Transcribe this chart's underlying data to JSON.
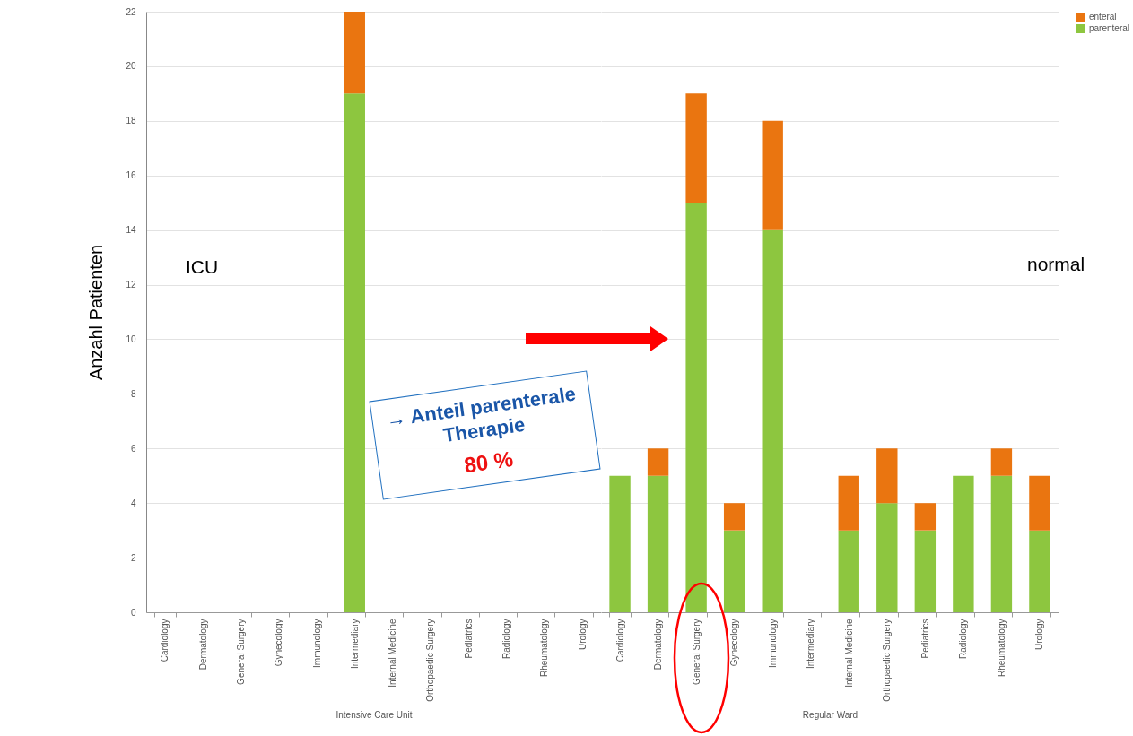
{
  "chart_data": [
    {
      "type": "bar",
      "stacked": true,
      "ylabel": "Anzahl Patienten",
      "xlabel": "Intensive Care Unit",
      "categories": [
        "Cardiology",
        "Dermatology",
        "General Surgery",
        "Gynecology",
        "Immunology",
        "Intermediary",
        "Internal Medicine",
        "Orthopaedic Surgery",
        "Pediatrics",
        "Radiology",
        "Rheumatology",
        "Urology"
      ],
      "series": [
        {
          "color": "#8dc63f",
          "values": [
            0,
            0,
            0,
            0,
            0,
            19,
            0,
            0,
            0,
            0,
            0,
            0
          ]
        },
        {
          "color": "#ea7510",
          "values": [
            0,
            0,
            0,
            0,
            0,
            3,
            0,
            0,
            0,
            0,
            0,
            0
          ]
        }
      ],
      "ylim": [
        0,
        22
      ],
      "yticks": [
        0,
        2,
        4,
        6,
        8,
        10,
        12,
        14,
        16,
        18,
        20,
        22
      ],
      "grid": "y",
      "annotations": [
        "ICU",
        "→ Anteil parenterale Therapie",
        "80 %"
      ]
    },
    {
      "type": "bar",
      "stacked": true,
      "xlabel": "Regular Ward",
      "categories": [
        "Cardiology",
        "Dermatology",
        "General Surgery",
        "Gynecology",
        "Immunology",
        "Intermediary",
        "Internal Medicine",
        "Orthopaedic Surgery",
        "Pediatrics",
        "Radiology",
        "Rheumatology",
        "Urology"
      ],
      "series": [
        {
          "name": "parenteral",
          "color": "#8dc63f",
          "values": [
            5,
            5,
            15,
            3,
            14,
            0,
            3,
            4,
            3,
            5,
            5,
            3
          ]
        },
        {
          "name": "enteral",
          "color": "#ea7510",
          "values": [
            0,
            1,
            4,
            1,
            4,
            0,
            2,
            2,
            1,
            0,
            1,
            2
          ]
        }
      ],
      "ylim": [
        0,
        22
      ],
      "yticks": [
        0,
        2,
        4,
        6,
        8,
        10,
        12,
        14,
        16,
        18,
        20,
        22
      ],
      "grid": "y",
      "tick_labels": "x",
      "legend": "top right",
      "annotations": [
        "normal"
      ]
    }
  ]
}
